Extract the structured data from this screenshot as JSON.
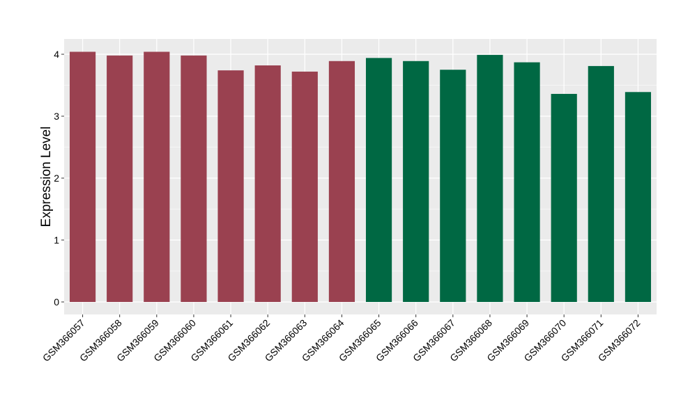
{
  "chart_data": {
    "type": "bar",
    "title": "",
    "xlabel": "",
    "ylabel": "Expression Level",
    "ylim": [
      -0.2,
      4.25
    ],
    "yticks": [
      0,
      1,
      2,
      3,
      4
    ],
    "grid": true,
    "legend": "none",
    "categories": [
      "GSM366057",
      "GSM366058",
      "GSM366059",
      "GSM366060",
      "GSM366061",
      "GSM366062",
      "GSM366063",
      "GSM366064",
      "GSM366065",
      "GSM366066",
      "GSM366067",
      "GSM366068",
      "GSM366069",
      "GSM366070",
      "GSM366071",
      "GSM366072"
    ],
    "values": [
      4.04,
      3.98,
      4.04,
      3.98,
      3.74,
      3.82,
      3.72,
      3.89,
      3.94,
      3.89,
      3.75,
      3.99,
      3.87,
      3.36,
      3.81,
      3.39
    ],
    "groups": [
      0,
      0,
      0,
      0,
      0,
      0,
      0,
      0,
      1,
      1,
      1,
      1,
      1,
      1,
      1,
      1
    ],
    "colors": {
      "group0": "#9A4150",
      "group1": "#006843",
      "panel": "#EBEBEB",
      "grid": "#FFFFFF",
      "tick_text": "#000000"
    }
  }
}
